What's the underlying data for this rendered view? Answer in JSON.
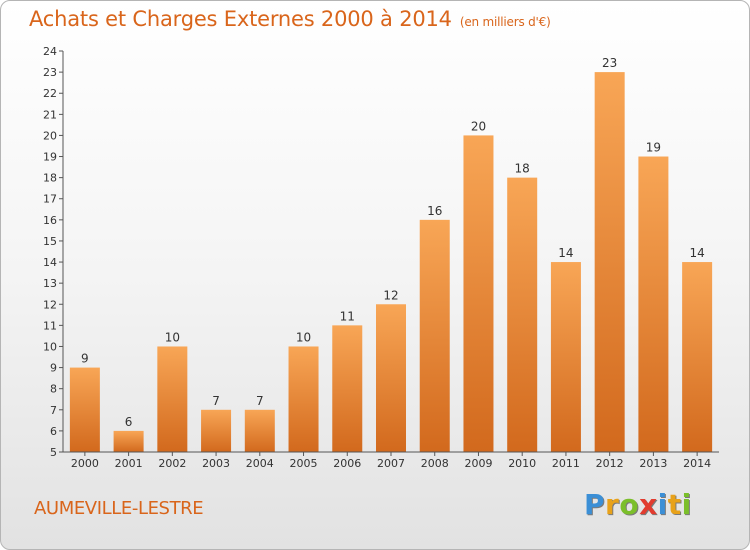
{
  "header": {
    "title": "Achats et Charges Externes 2000 à 2014",
    "subtitle": "(en milliers d'€)"
  },
  "footer": {
    "place": "AUMEVILLE-LESTRE",
    "logo_text": "Proxiti"
  },
  "colors": {
    "accent": "#d9651b",
    "bar_top": "#f8a656",
    "bar_bottom": "#d2691d"
  },
  "chart_data": {
    "type": "bar",
    "title": "Achats et Charges Externes 2000 à 2014",
    "subtitle": "(en milliers d'€)",
    "categories": [
      "2000",
      "2001",
      "2002",
      "2003",
      "2004",
      "2005",
      "2006",
      "2007",
      "2008",
      "2009",
      "2010",
      "2011",
      "2012",
      "2013",
      "2014"
    ],
    "values": [
      9,
      6,
      10,
      7,
      7,
      10,
      11,
      12,
      16,
      20,
      18,
      14,
      23,
      19,
      14
    ],
    "data_labels": [
      "9",
      "6",
      "10",
      "7",
      "7",
      "10",
      "11",
      "12",
      "16",
      "20",
      "18",
      "14",
      "23",
      "19",
      "14"
    ],
    "ylim": [
      5,
      24
    ],
    "yticks": [
      "5",
      "6",
      "7",
      "8",
      "9",
      "10",
      "11",
      "12",
      "13",
      "14",
      "15",
      "16",
      "17",
      "18",
      "19",
      "20",
      "21",
      "22",
      "23",
      "24"
    ],
    "xlabel": "",
    "ylabel": "",
    "grid": false,
    "legend": "none"
  }
}
